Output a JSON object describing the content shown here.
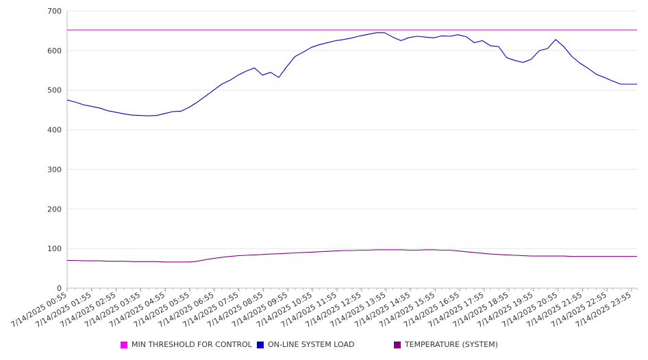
{
  "chart_data": {
    "type": "line",
    "title": "",
    "xlabel": "",
    "ylabel": "",
    "ylim": [
      0,
      700
    ],
    "yticks": [
      0,
      100,
      200,
      300,
      400,
      500,
      600,
      700
    ],
    "grid": "horizontal",
    "legend_position": "bottom",
    "x_tick_labels": [
      "7/14/2025 00:55",
      "7/14/2025 01:55",
      "7/14/2025 02:55",
      "7/14/2025 03:55",
      "7/14/2025 04:55",
      "7/14/2025 05:55",
      "7/14/2025 06:55",
      "7/14/2025 07:55",
      "7/14/2025 08:55",
      "7/14/2025 09:55",
      "7/14/2025 10:55",
      "7/14/2025 11:55",
      "7/14/2025 12:55",
      "7/14/2025 13:55",
      "7/14/2025 14:55",
      "7/14/2025 15:55",
      "7/14/2025 16:55",
      "7/14/2025 17:55",
      "7/14/2025 18:55",
      "7/14/2025 19:55",
      "7/14/2025 20:55",
      "7/14/2025 21:55",
      "7/14/2025 22:55",
      "7/14/2025 23:55"
    ],
    "x": [
      "00:55",
      "01:15",
      "01:35",
      "01:55",
      "02:15",
      "02:35",
      "02:55",
      "03:15",
      "03:35",
      "03:55",
      "04:15",
      "04:35",
      "04:55",
      "05:15",
      "05:35",
      "05:55",
      "06:15",
      "06:35",
      "06:55",
      "07:15",
      "07:35",
      "07:55",
      "08:15",
      "08:35",
      "08:55",
      "09:15",
      "09:35",
      "09:55",
      "10:15",
      "10:35",
      "10:55",
      "11:15",
      "11:35",
      "11:55",
      "12:15",
      "12:35",
      "12:55",
      "13:15",
      "13:35",
      "13:55",
      "14:15",
      "14:35",
      "14:55",
      "15:15",
      "15:35",
      "15:55",
      "16:15",
      "16:35",
      "16:55",
      "17:15",
      "17:35",
      "17:55",
      "18:15",
      "18:35",
      "18:55",
      "19:15",
      "19:35",
      "19:55",
      "20:15",
      "20:35",
      "20:55",
      "21:15",
      "21:35",
      "21:55",
      "22:15",
      "22:35",
      "22:55",
      "23:15",
      "23:35",
      "23:55",
      "00:15"
    ],
    "series": [
      {
        "name": "MIN THRESHOLD FOR CONTROL",
        "color": "#ff00ff",
        "values": [
          652,
          652,
          652,
          652,
          652,
          652,
          652,
          652,
          652,
          652,
          652,
          652,
          652,
          652,
          652,
          652,
          652,
          652,
          652,
          652,
          652,
          652,
          652,
          652,
          652,
          652,
          652,
          652,
          652,
          652,
          652,
          652,
          652,
          652,
          652,
          652,
          652,
          652,
          652,
          652,
          652,
          652,
          652,
          652,
          652,
          652,
          652,
          652,
          652,
          652,
          652,
          652,
          652,
          652,
          652,
          652,
          652,
          652,
          652,
          652,
          652,
          652,
          652,
          652,
          652,
          652,
          652,
          652,
          652,
          652,
          652
        ]
      },
      {
        "name": "ON-LINE SYSTEM LOAD",
        "color": "#0000cc",
        "values": [
          475,
          470,
          463,
          459,
          455,
          448,
          444,
          440,
          437,
          436,
          435,
          436,
          441,
          446,
          447,
          457,
          470,
          485,
          500,
          515,
          525,
          538,
          548,
          556,
          538,
          545,
          532,
          560,
          585,
          596,
          608,
          615,
          620,
          625,
          628,
          632,
          637,
          641,
          645,
          645,
          634,
          625,
          633,
          636,
          634,
          632,
          637,
          636,
          640,
          635,
          620,
          625,
          612,
          610,
          582,
          575,
          570,
          578,
          600,
          605,
          628,
          610,
          585,
          568,
          555,
          540,
          532,
          523,
          515,
          515,
          515
        ]
      },
      {
        "name": "TEMPERATURE (SYSTEM)",
        "color": "#800080",
        "values": [
          70,
          70,
          69,
          69,
          69,
          68,
          68,
          68,
          67,
          67,
          67,
          67,
          66,
          66,
          66,
          66,
          68,
          72,
          75,
          78,
          80,
          82,
          83,
          84,
          85,
          86,
          87,
          88,
          89,
          90,
          91,
          92,
          93,
          94,
          95,
          95,
          96,
          96,
          97,
          97,
          97,
          97,
          96,
          96,
          97,
          97,
          96,
          96,
          94,
          92,
          90,
          88,
          86,
          85,
          84,
          83,
          82,
          81,
          81,
          81,
          81,
          81,
          80,
          80,
          80,
          80,
          80,
          80,
          80,
          80,
          80
        ]
      }
    ]
  }
}
